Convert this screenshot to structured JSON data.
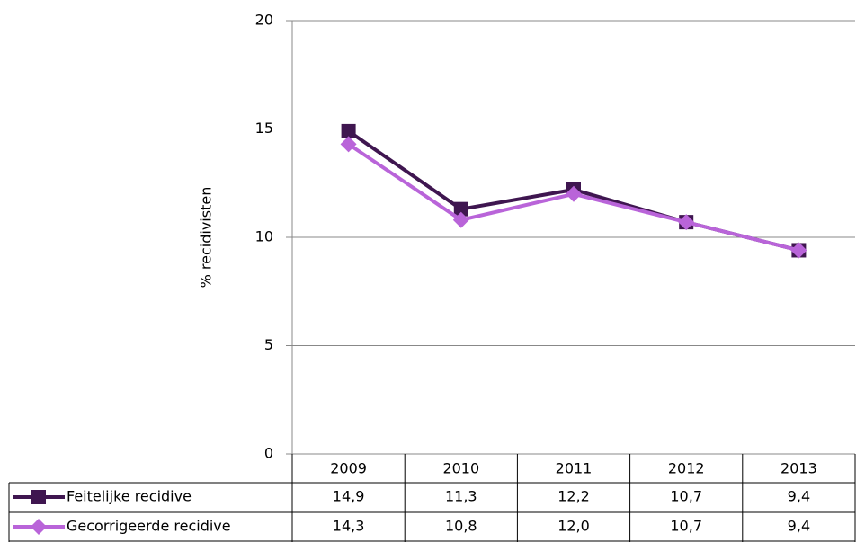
{
  "chart_data": {
    "type": "line",
    "y_label": "% recidivisten",
    "categories": [
      "2009",
      "2010",
      "2011",
      "2012",
      "2013"
    ],
    "series": [
      {
        "name": "Feitelijke recidive",
        "color": "#3f1650",
        "marker": "square",
        "values": [
          14.9,
          11.3,
          12.2,
          10.7,
          9.4
        ],
        "value_labels": [
          "14,9",
          "11,3",
          "12,2",
          "10,7",
          "9,4"
        ]
      },
      {
        "name": "Gecorrigeerde recidive",
        "color": "#b964d9",
        "marker": "diamond",
        "values": [
          14.3,
          10.8,
          12.0,
          10.7,
          9.4
        ],
        "value_labels": [
          "14,3",
          "10,8",
          "12,0",
          "10,7",
          "9,4"
        ]
      }
    ],
    "ylim": [
      0,
      20
    ],
    "yticks": [
      0,
      5,
      10,
      15,
      20
    ],
    "grid": true
  }
}
